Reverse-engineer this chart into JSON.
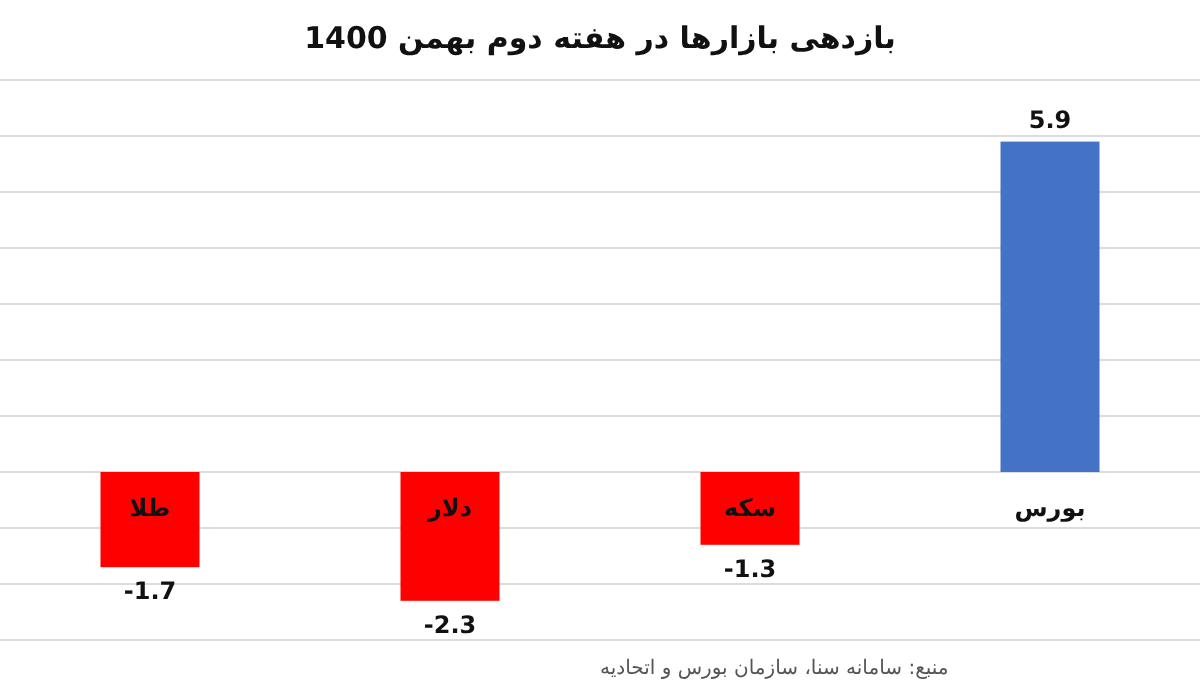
{
  "chart_data": {
    "type": "bar",
    "title": "بازدهی بازارها در هفته دوم بهمن 1400",
    "categories": [
      "طلا",
      "دلار",
      "سکه",
      "بورس"
    ],
    "values": [
      -1.7,
      -2.3,
      -1.3,
      5.9
    ],
    "colors": [
      "#ff0000",
      "#ff0000",
      "#ff0000",
      "#4472c4"
    ],
    "data_labels": true,
    "ylim": [
      -3,
      7
    ],
    "yticks": [
      {
        "value": -3,
        "label": null
      },
      {
        "value": -2,
        "label": null
      },
      {
        "value": -1,
        "label": null
      },
      {
        "value": 0,
        "label": null
      },
      {
        "value": 1,
        "label": null
      },
      {
        "value": 2,
        "label": null
      },
      {
        "value": 3,
        "label": null
      },
      {
        "value": 4,
        "label": null
      },
      {
        "value": 5,
        "label": null
      },
      {
        "value": 6,
        "label": null
      },
      {
        "value": 7,
        "label": null
      }
    ],
    "grid": "y",
    "tick_labels": "x",
    "annotations": [
      "منبع: سامانه سنا، سازمان بورس و اتحادیه"
    ]
  }
}
